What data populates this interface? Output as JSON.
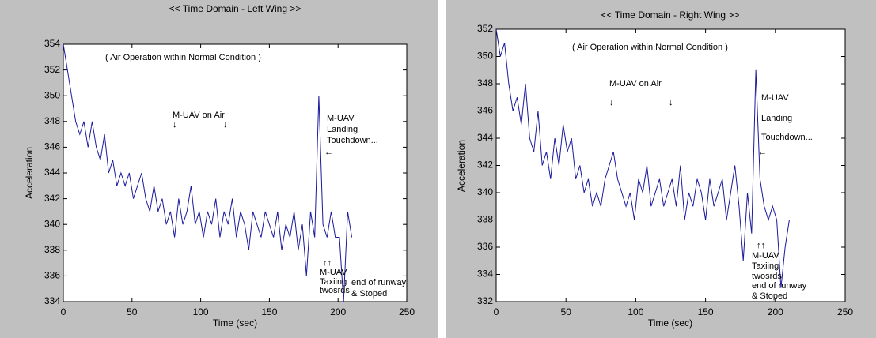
{
  "chart_data": [
    {
      "type": "line",
      "title": "<< Time Domain - Left Wing >>",
      "x_label": "Time (sec)",
      "y_label": "Acceleration",
      "x": [
        0,
        3,
        6,
        9,
        12,
        15,
        18,
        21,
        24,
        27,
        30,
        33,
        36,
        39,
        42,
        45,
        48,
        51,
        54,
        57,
        60,
        63,
        66,
        69,
        72,
        75,
        78,
        81,
        84,
        87,
        90,
        93,
        96,
        99,
        102,
        105,
        108,
        111,
        114,
        117,
        120,
        123,
        126,
        129,
        132,
        135,
        138,
        141,
        144,
        147,
        150,
        153,
        156,
        159,
        162,
        165,
        168,
        171,
        174,
        177,
        180,
        183,
        186,
        189,
        192,
        195,
        198,
        201,
        204,
        207,
        210
      ],
      "series": [
        {
          "color": "#1a1a9c",
          "values": [
            354,
            352,
            350,
            348,
            347,
            348,
            346,
            348,
            346,
            345,
            347,
            344,
            345,
            343,
            344,
            343,
            344,
            342,
            343,
            344,
            342,
            341,
            343,
            341,
            342,
            340,
            341,
            339,
            342,
            340,
            341,
            343,
            340,
            341,
            339,
            341,
            340,
            342,
            339,
            341,
            340,
            342,
            339,
            341,
            340,
            338,
            341,
            340,
            339,
            341,
            340,
            339,
            341,
            338,
            340,
            339,
            341,
            338,
            340,
            336,
            341,
            339,
            350,
            340,
            339,
            341,
            339,
            339,
            334,
            341,
            339
          ]
        }
      ],
      "xlim": [
        0,
        250
      ],
      "xticks": [
        0,
        50,
        100,
        150,
        200,
        250
      ],
      "ylim": [
        334,
        354
      ],
      "yticks": [
        334,
        336,
        338,
        340,
        342,
        344,
        346,
        348,
        350,
        352,
        354
      ],
      "annotations": [
        "( Air Operation within Normal Condition )",
        "M-UAV on Air",
        "↓",
        "↓",
        "M-UAV",
        "Landing",
        "Touchdown...",
        "←",
        "↑↑",
        "M-UAV",
        "Taxiing",
        "twosrds",
        "end of runway",
        "& Stoped"
      ]
    },
    {
      "type": "line",
      "title": "<< Time Domain  - Right Wing >>",
      "x_label": "Time (sec)",
      "y_label": "Acceleration",
      "x": [
        0,
        3,
        6,
        9,
        12,
        15,
        18,
        21,
        24,
        27,
        30,
        33,
        36,
        39,
        42,
        45,
        48,
        51,
        54,
        57,
        60,
        63,
        66,
        69,
        72,
        75,
        78,
        81,
        84,
        87,
        90,
        93,
        96,
        99,
        102,
        105,
        108,
        111,
        114,
        117,
        120,
        123,
        126,
        129,
        132,
        135,
        138,
        141,
        144,
        147,
        150,
        153,
        156,
        159,
        162,
        165,
        168,
        171,
        174,
        177,
        180,
        183,
        186,
        189,
        192,
        195,
        198,
        201,
        204,
        207,
        210
      ],
      "series": [
        {
          "color": "#1a1a9c",
          "values": [
            352,
            350,
            351,
            348,
            346,
            347,
            345,
            348,
            344,
            343,
            346,
            342,
            343,
            341,
            344,
            342,
            345,
            343,
            344,
            341,
            342,
            340,
            341,
            339,
            340,
            339,
            341,
            342,
            343,
            341,
            340,
            339,
            340,
            338,
            341,
            340,
            342,
            339,
            340,
            341,
            339,
            340,
            341,
            339,
            342,
            338,
            340,
            339,
            341,
            340,
            338,
            341,
            339,
            340,
            341,
            338,
            340,
            342,
            339,
            335,
            340,
            337,
            349,
            341,
            339,
            338,
            339,
            338,
            333,
            336,
            338
          ]
        }
      ],
      "xlim": [
        0,
        250
      ],
      "xticks": [
        0,
        50,
        100,
        150,
        200,
        250
      ],
      "ylim": [
        332,
        352
      ],
      "yticks": [
        332,
        334,
        336,
        338,
        340,
        342,
        344,
        346,
        348,
        350,
        352
      ],
      "annotations": [
        "( Air Operation within Normal Condition )",
        "M-UAV on Air",
        "↓",
        "↓",
        "M-UAV",
        "Landing",
        "Touchdown...",
        "←",
        "↑↑",
        "M-UAV",
        "Taxiing",
        "twosrds",
        "end of runway",
        "& Stoped"
      ]
    }
  ]
}
